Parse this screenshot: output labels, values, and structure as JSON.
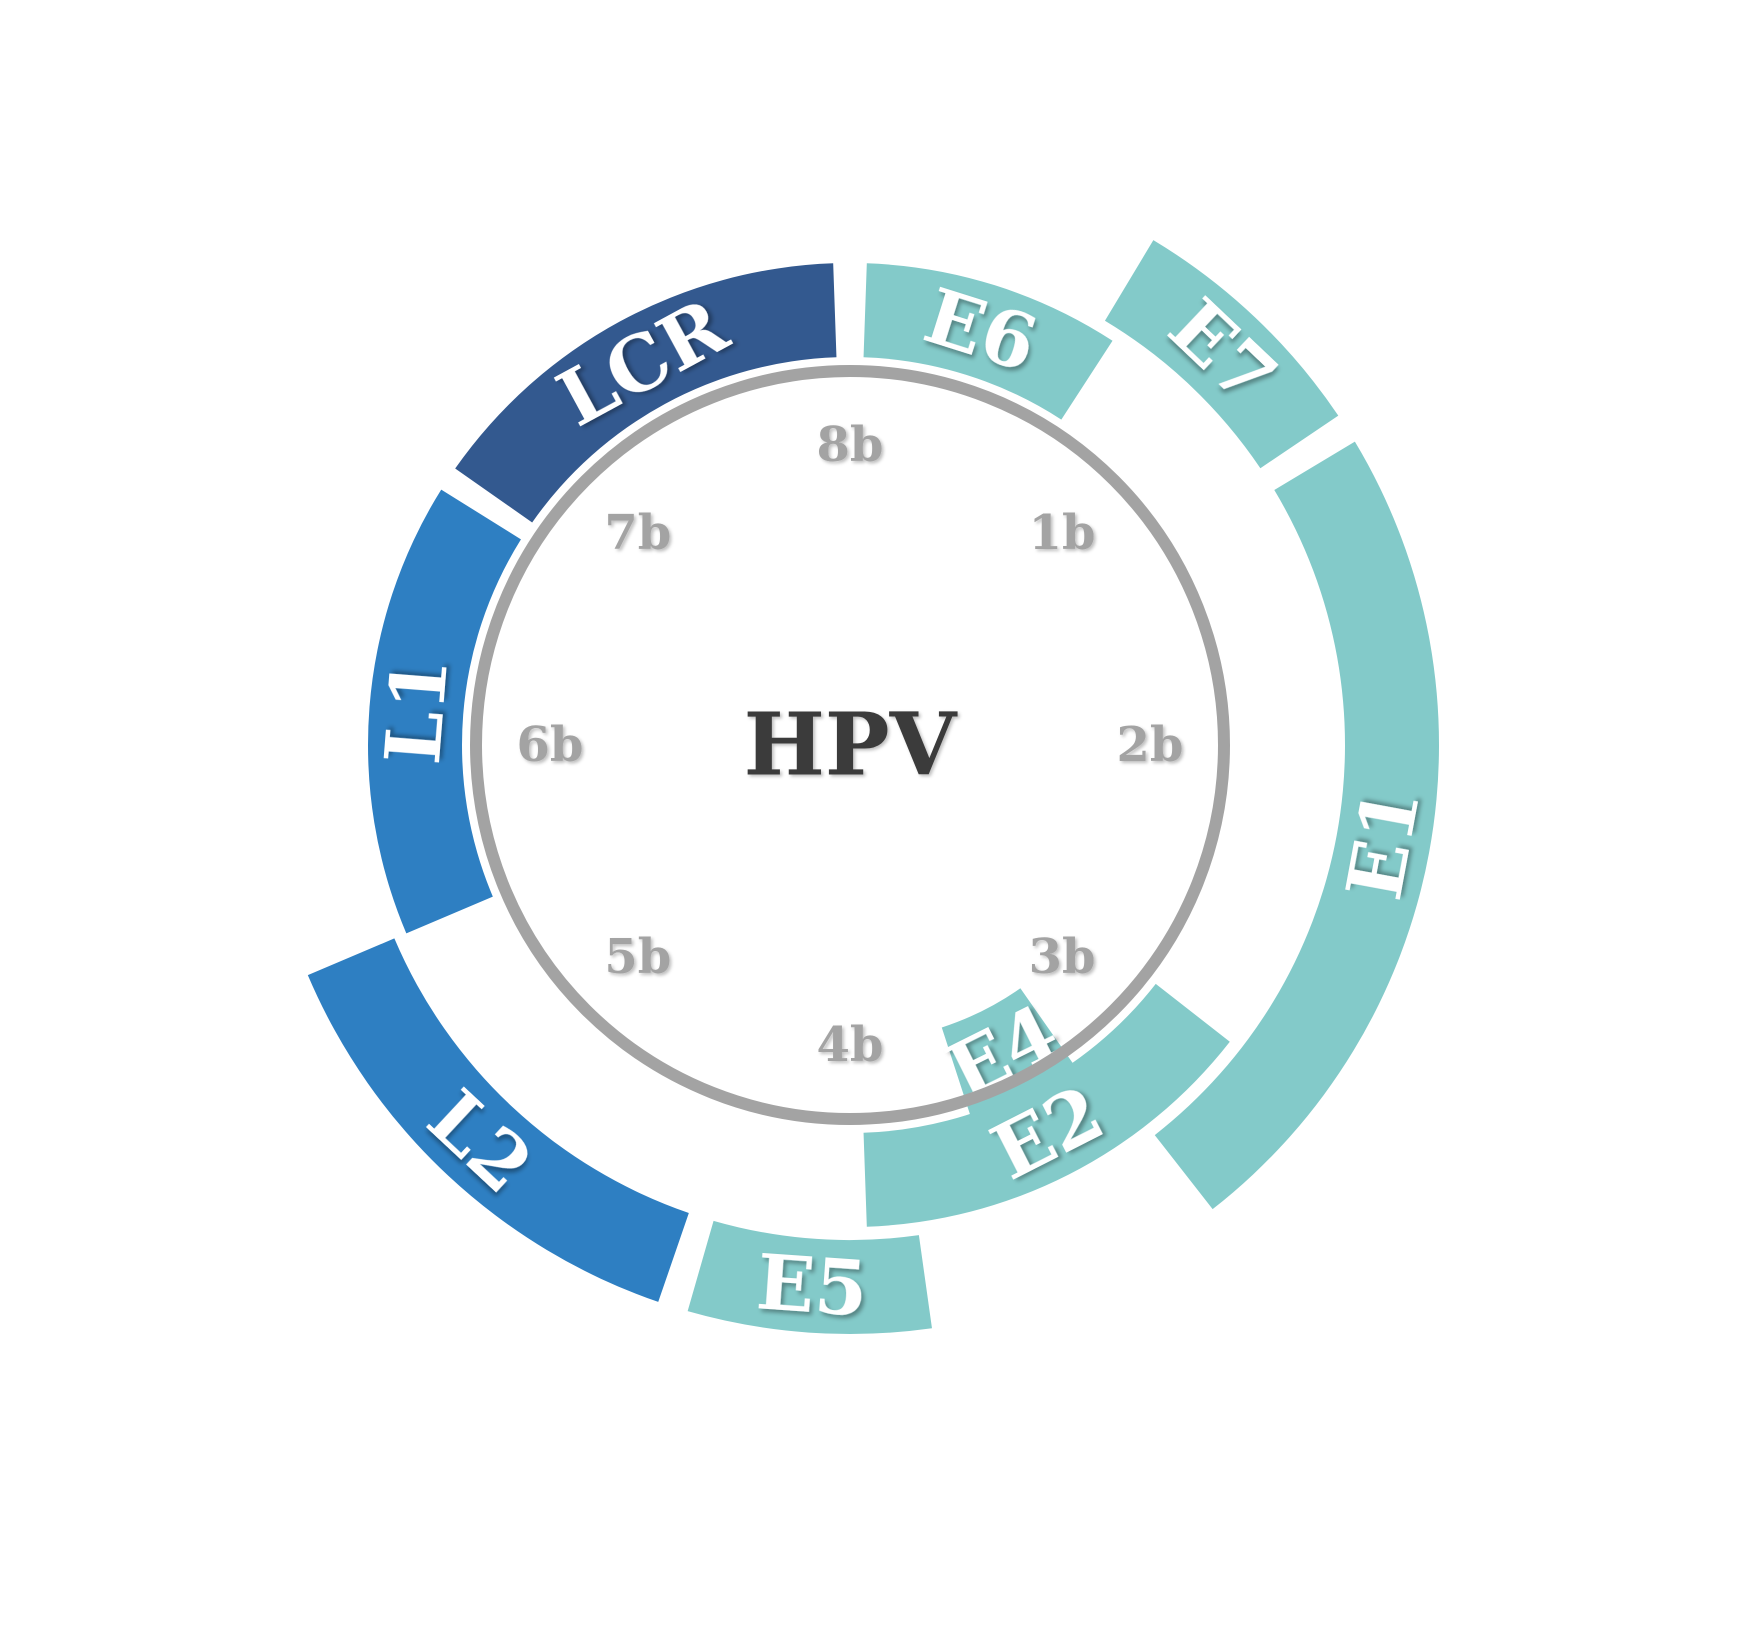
{
  "center_label": "HPV",
  "colors": {
    "late": "#2e7fc2",
    "lcr": "#33598f",
    "early": "#83cac9",
    "inner_ring": "#a3a3a3",
    "gene_text": "#ffffff",
    "kb_text": "#a3a3a3"
  },
  "kb_labels": [
    {
      "text": "8b",
      "angle": 0
    },
    {
      "text": "1b",
      "angle": 45
    },
    {
      "text": "2b",
      "angle": 90
    },
    {
      "text": "3b",
      "angle": 135
    },
    {
      "text": "4b",
      "angle": 180
    },
    {
      "text": "5b",
      "angle": 225
    },
    {
      "text": "6b",
      "angle": 270
    },
    {
      "text": "7b",
      "angle": 315
    }
  ],
  "genes": [
    {
      "name": "LCR",
      "ring": "outer",
      "start_deg": 305,
      "end_deg": 358,
      "color_key": "lcr"
    },
    {
      "name": "E6",
      "ring": "outer",
      "start_deg": 2,
      "end_deg": 33,
      "color_key": "early"
    },
    {
      "name": "E7",
      "ring": "far",
      "start_deg": 31,
      "end_deg": 56,
      "color_key": "early"
    },
    {
      "name": "E1",
      "ring": "far",
      "start_deg": 59,
      "end_deg": 142,
      "color_key": "early"
    },
    {
      "name": "E2",
      "ring": "outer",
      "start_deg": 128,
      "end_deg": 178,
      "color_key": "early"
    },
    {
      "name": "E4",
      "ring": "inner",
      "start_deg": 145,
      "end_deg": 162,
      "color_key": "early"
    },
    {
      "name": "E5",
      "ring": "far",
      "start_deg": 172,
      "end_deg": 196,
      "color_key": "early"
    },
    {
      "name": "L2",
      "ring": "far",
      "start_deg": 199,
      "end_deg": 247,
      "color_key": "late"
    },
    {
      "name": "L1",
      "ring": "outer",
      "start_deg": 247,
      "end_deg": 302,
      "color_key": "late"
    }
  ]
}
